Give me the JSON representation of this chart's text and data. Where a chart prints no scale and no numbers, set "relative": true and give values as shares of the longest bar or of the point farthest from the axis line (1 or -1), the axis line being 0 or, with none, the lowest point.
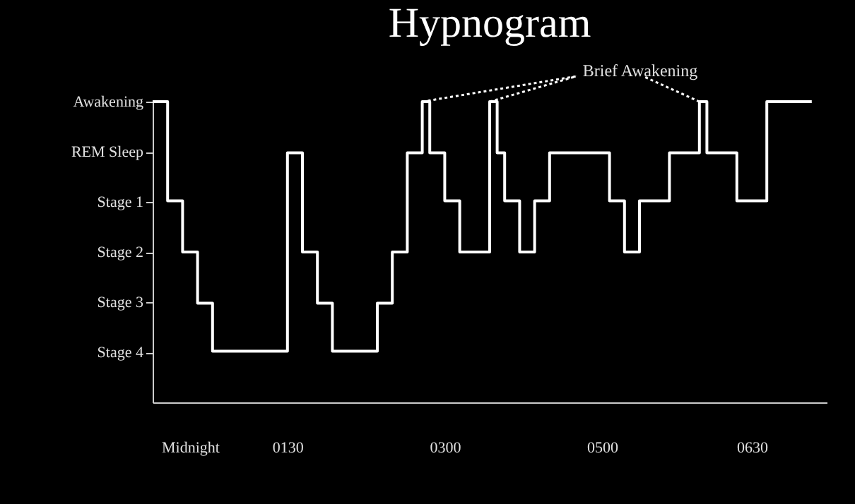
{
  "chart_data": {
    "type": "step",
    "title": "Hypnogram",
    "relative": true,
    "annotations": [
      "Brief Awakening"
    ],
    "categories": [
      null,
      null,
      null,
      null,
      null,
      "Midnight",
      null,
      null,
      null,
      null,
      null,
      null,
      null,
      null,
      null,
      null,
      null,
      null,
      "0130",
      null,
      null,
      null,
      null,
      null,
      null,
      null,
      null,
      null,
      null,
      null,
      null,
      null,
      null,
      null,
      null,
      null,
      null,
      null,
      null,
      "0300",
      null,
      null,
      null,
      null,
      null,
      null,
      null,
      null,
      null,
      null,
      null,
      null,
      null,
      null,
      null,
      null,
      null,
      null,
      null,
      null,
      "0500",
      null,
      null,
      null,
      null,
      null,
      null,
      null,
      null,
      null,
      null,
      null,
      null,
      null,
      null,
      null,
      null,
      null,
      null,
      null,
      "0630",
      null,
      null,
      null,
      null,
      null,
      null,
      null,
      null,
      null,
      null
    ],
    "y_categories": [
      "Awakening",
      "REM Sleep",
      "Stage 1",
      "Stage 2",
      "Stage 3",
      "Stage 4"
    ],
    "series": [
      {
        "color": "#ffffff",
        "values": [
          1,
          1,
          0.67,
          0.67,
          0.5,
          0.5,
          0.33,
          0.33,
          0.17,
          0.17,
          0.17,
          0.17,
          0.17,
          0.17,
          0.17,
          0.17,
          0.17,
          0.17,
          0.83,
          0.83,
          0.5,
          0.5,
          0.33,
          0.33,
          0.17,
          0.17,
          0.17,
          0.17,
          0.17,
          0.17,
          0.33,
          0.33,
          0.5,
          0.5,
          0.83,
          0.83,
          1,
          0.83,
          0.83,
          0.67,
          0.67,
          0.5,
          0.5,
          0.5,
          0.5,
          1,
          0.83,
          0.67,
          0.67,
          0.5,
          0.5,
          0.67,
          0.67,
          0.83,
          0.83,
          0.83,
          0.83,
          0.83,
          0.83,
          0.83,
          0.83,
          0.67,
          0.67,
          0.5,
          0.5,
          0.67,
          0.67,
          0.67,
          0.67,
          0.83,
          0.83,
          0.83,
          0.83,
          1,
          0.83,
          0.83,
          0.83,
          0.83,
          0.67,
          0.67,
          0.67,
          0.67,
          1,
          1,
          1,
          1,
          1,
          1,
          1,
          null,
          null
        ]
      }
    ],
    "grid": false,
    "marker": "none",
    "line_style": "solid"
  }
}
